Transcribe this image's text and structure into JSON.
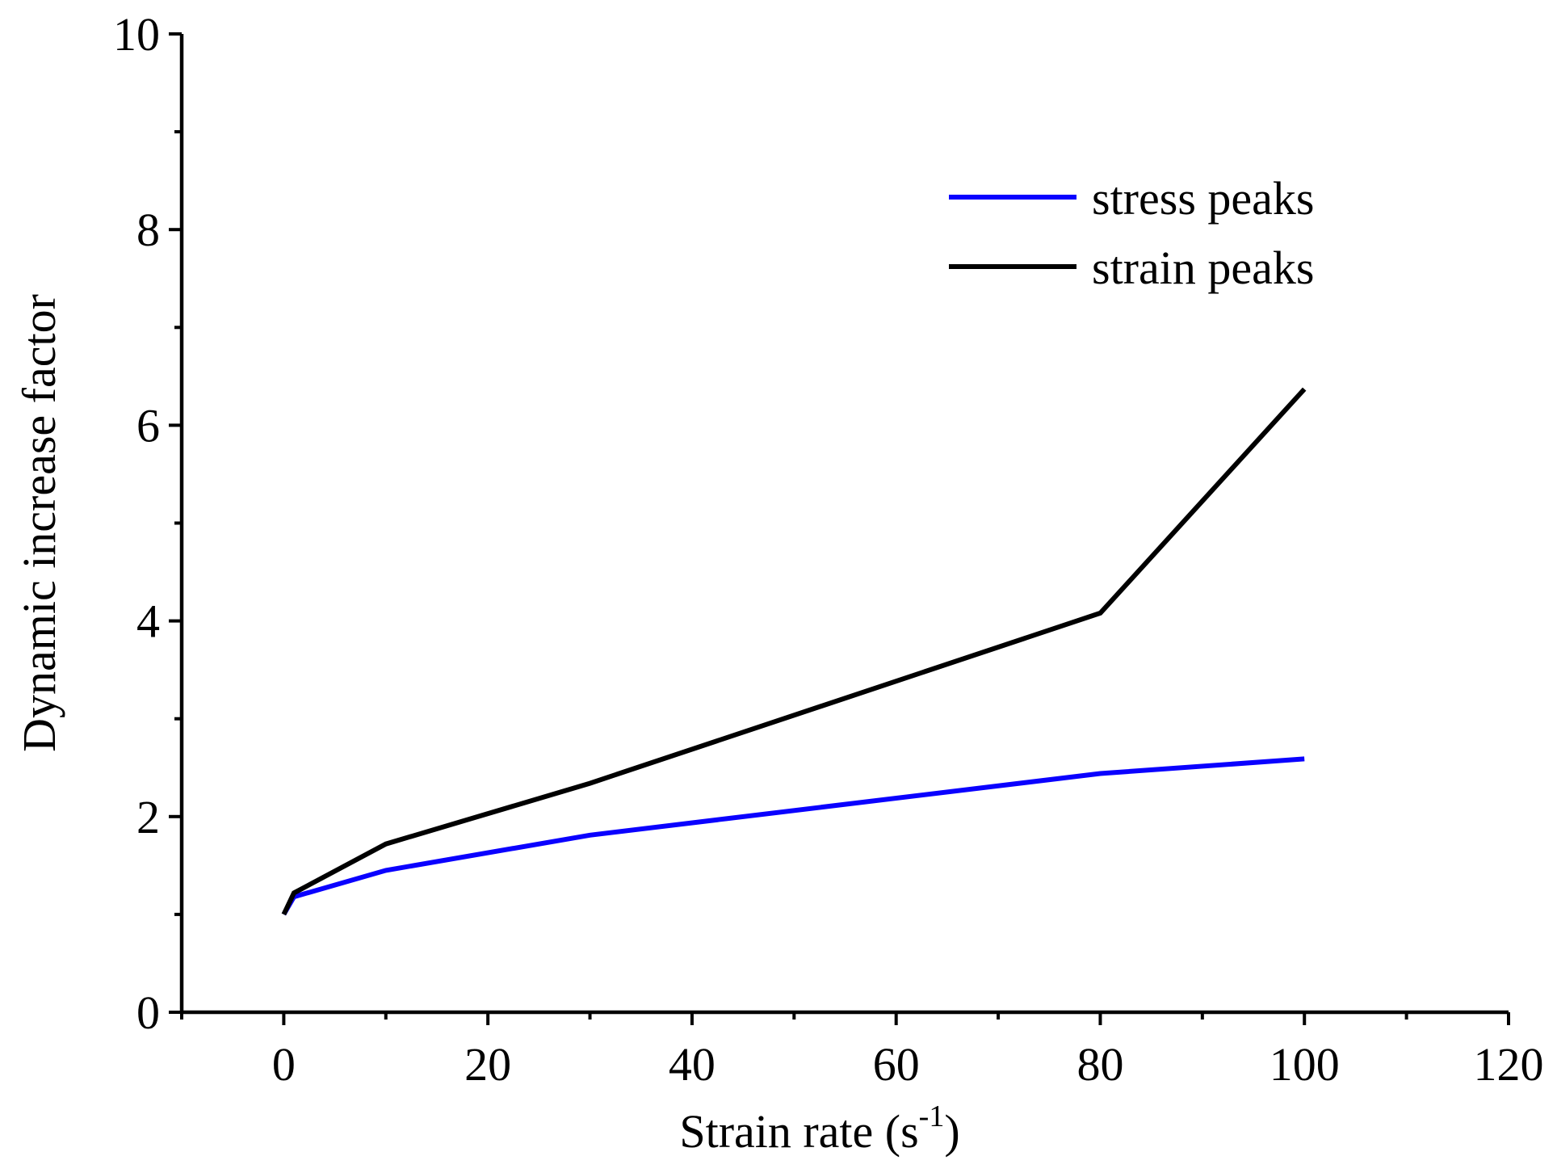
{
  "chart_data": {
    "type": "line",
    "title": "",
    "xlabel": "Strain rate (s",
    "xlabel_superscript": "-1",
    "xlabel_suffix": ")",
    "ylabel": "Dynamic increase factor",
    "xlim": [
      -10,
      120
    ],
    "ylim": [
      0,
      10
    ],
    "x_major_ticks": [
      0,
      20,
      40,
      60,
      80,
      100,
      120
    ],
    "x_minor_ticks": [
      -10,
      10,
      30,
      50,
      70,
      90,
      110
    ],
    "y_major_ticks": [
      0,
      2,
      4,
      6,
      8,
      10
    ],
    "y_minor_ticks": [
      1,
      3,
      5,
      7,
      9
    ],
    "grid": false,
    "legend_position": "top-right",
    "series": [
      {
        "name": "stress peaks",
        "color": "#0a00ff",
        "x": [
          0,
          1,
          10,
          30,
          80,
          100
        ],
        "y": [
          1.0,
          1.18,
          1.45,
          1.81,
          2.44,
          2.59
        ]
      },
      {
        "name": "strain peaks",
        "color": "#000000",
        "x": [
          0,
          1,
          10,
          30,
          80,
          100
        ],
        "y": [
          1.0,
          1.22,
          1.72,
          2.34,
          4.08,
          6.37
        ]
      }
    ]
  }
}
